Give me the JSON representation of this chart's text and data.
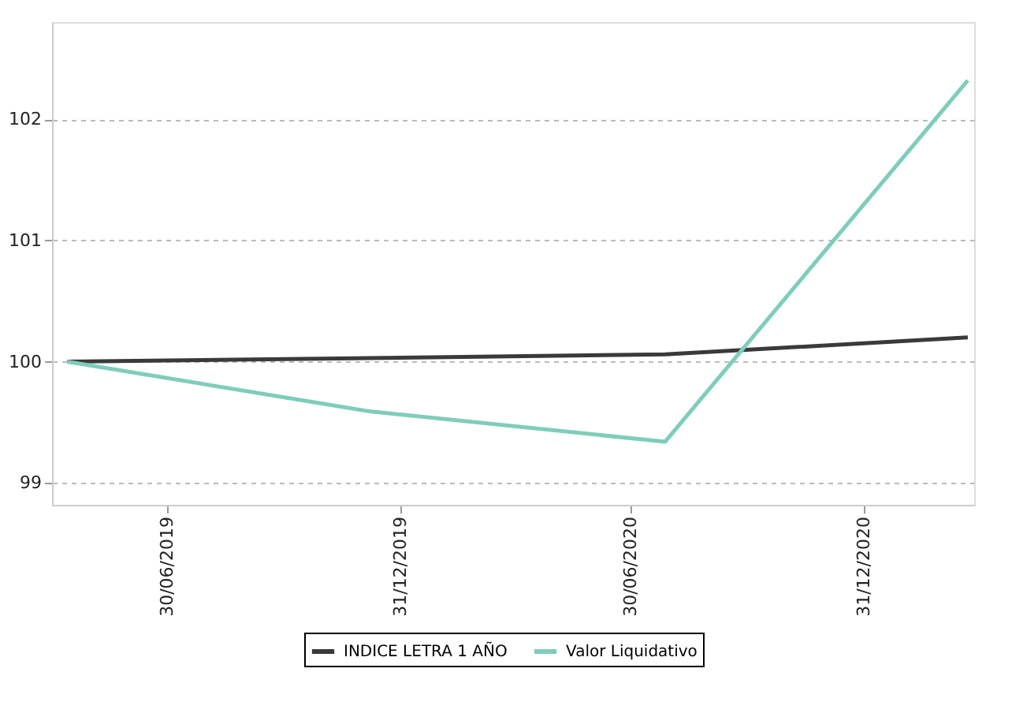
{
  "chart_data": {
    "type": "line",
    "x": [
      "2019-04-12",
      "2019-12-07",
      "2020-07-27",
      "2021-03-23"
    ],
    "series": [
      {
        "name": "INDICE LETRA 1 AÑO",
        "color": "#3a3a3a",
        "values": [
          100,
          100.03,
          100.06,
          100.2
        ]
      },
      {
        "name": "Valor Liquidativo",
        "color": "#7fcdbb",
        "values": [
          100,
          99.59,
          99.34,
          102.32
        ]
      }
    ],
    "xlim": [
      "2019-03-31",
      "2021-03-28"
    ],
    "xticks": [
      {
        "value": "2019-06-30",
        "label": "30/06/2019"
      },
      {
        "value": "2019-12-31",
        "label": "31/12/2019"
      },
      {
        "value": "2020-06-30",
        "label": "30/06/2020"
      },
      {
        "value": "2020-12-31",
        "label": "31/12/2020"
      }
    ],
    "ylim": [
      98.82,
      102.8
    ],
    "yticks": [
      99,
      100,
      101,
      102
    ],
    "grid": "y",
    "legend": "bottom",
    "marker": "none",
    "line_style": "solid"
  }
}
